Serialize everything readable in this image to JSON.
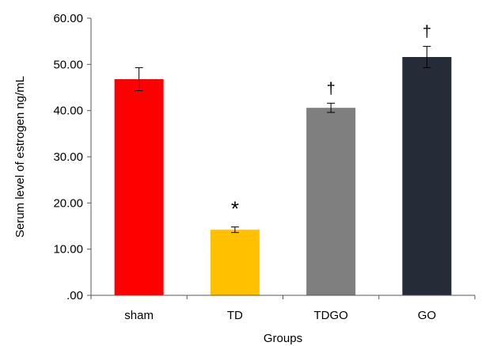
{
  "chart_data": {
    "type": "bar",
    "title": "",
    "xlabel": "Groups",
    "ylabel": "Serum level of estrogen ng/mL",
    "ylim": [
      0,
      60
    ],
    "yticks": [
      0,
      10,
      20,
      30,
      40,
      50,
      60
    ],
    "ytick_labels": [
      ".00",
      "10.00",
      "20.00",
      "30.00",
      "40.00",
      "50.00",
      "60.00"
    ],
    "categories": [
      "sham",
      "TD",
      "TDGO",
      "GO"
    ],
    "values": [
      46.8,
      14.2,
      40.6,
      51.6
    ],
    "errors": [
      2.5,
      0.6,
      1.0,
      2.3
    ],
    "colors": [
      "#ff0000",
      "#ffc000",
      "#7f7f7f",
      "#252b37"
    ],
    "annotations": [
      "",
      "*",
      "†",
      "†"
    ],
    "grid": false,
    "legend": "none"
  }
}
